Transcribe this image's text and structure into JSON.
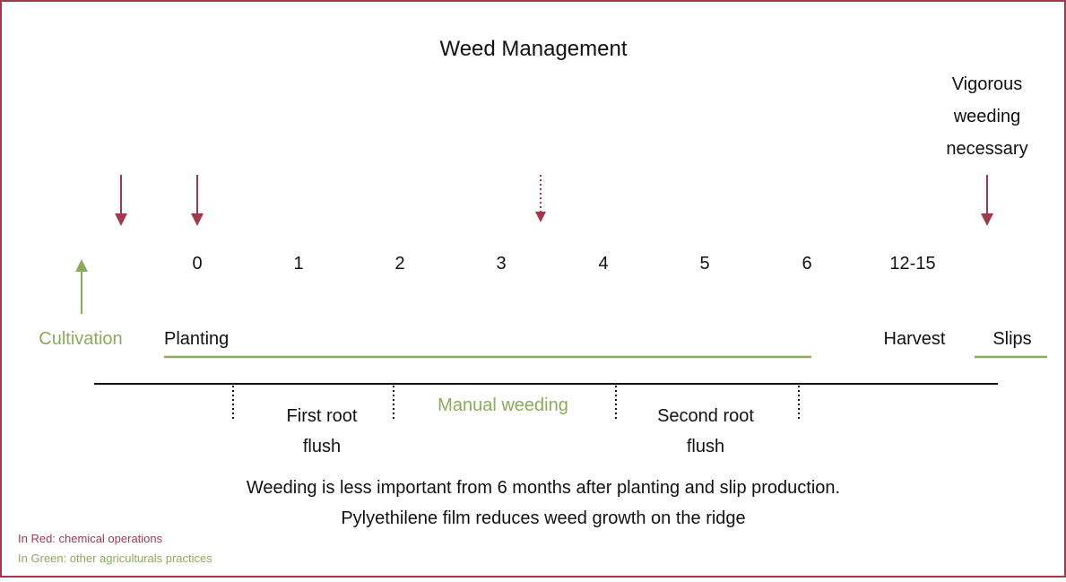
{
  "title": "Weed Management",
  "months": [
    "0",
    "1",
    "2",
    "3",
    "4",
    "5",
    "6",
    "12-15"
  ],
  "labels": {
    "cultivation": "Cultivation",
    "planting": "Planting",
    "harvest": "Harvest",
    "slips": "Slips",
    "manual_weeding": "Manual weeding",
    "vigorous": [
      "Vigorous",
      "weeding",
      "necessary"
    ],
    "first_flush": [
      "First root",
      "flush"
    ],
    "second_flush": [
      "Second root",
      "flush"
    ]
  },
  "notes": [
    "Weeding is less important from 6 months after planting and slip production.",
    "Pylyethilene film reduces weed growth on the ridge"
  ],
  "legend": [
    "In Red: chemical operations",
    "In Green: other agriculturals practices"
  ]
}
